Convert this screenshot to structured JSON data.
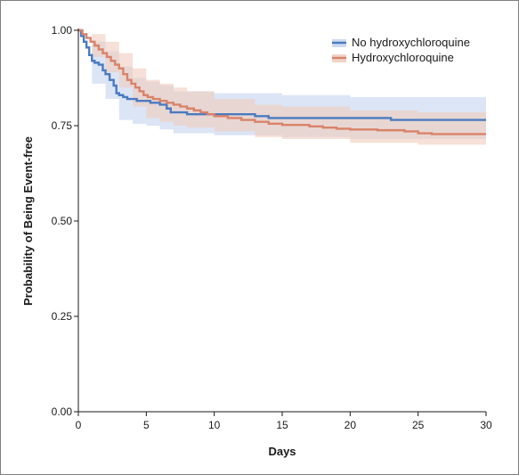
{
  "chart_data": {
    "type": "line",
    "subtype": "kaplan-meier-step",
    "title": "",
    "xlabel": "Days",
    "ylabel": "Probability of Being Event-free",
    "xlim": [
      0,
      30
    ],
    "ylim": [
      0,
      1
    ],
    "x_ticks": [
      "0",
      "5",
      "10",
      "15",
      "20",
      "25",
      "30"
    ],
    "y_ticks": [
      "0.00",
      "0.25",
      "0.50",
      "0.75",
      "1.00"
    ],
    "grid": false,
    "legend_position": "top-right",
    "series": [
      {
        "name": "No hydroxychloroquine",
        "color": "#4a7bc0",
        "band_color": "#c5d3ee",
        "points": [
          [
            0,
            1.0
          ],
          [
            0.2,
            0.985
          ],
          [
            0.4,
            0.97
          ],
          [
            0.6,
            0.955
          ],
          [
            0.8,
            0.935
          ],
          [
            1.0,
            0.92
          ],
          [
            1.2,
            0.915
          ],
          [
            1.5,
            0.91
          ],
          [
            1.8,
            0.895
          ],
          [
            2.0,
            0.885
          ],
          [
            2.3,
            0.87
          ],
          [
            2.6,
            0.855
          ],
          [
            2.8,
            0.835
          ],
          [
            3.0,
            0.83
          ],
          [
            3.3,
            0.825
          ],
          [
            3.6,
            0.82
          ],
          [
            4.0,
            0.82
          ],
          [
            4.3,
            0.815
          ],
          [
            5.0,
            0.815
          ],
          [
            5.3,
            0.81
          ],
          [
            6.0,
            0.805
          ],
          [
            6.5,
            0.795
          ],
          [
            6.8,
            0.785
          ],
          [
            8.0,
            0.78
          ],
          [
            10.0,
            0.78
          ],
          [
            13.0,
            0.775
          ],
          [
            14.0,
            0.77
          ],
          [
            20.0,
            0.77
          ],
          [
            23.0,
            0.765
          ],
          [
            30.0,
            0.765
          ]
        ],
        "ci_upper": [
          [
            0,
            1.0
          ],
          [
            1,
            0.97
          ],
          [
            2,
            0.945
          ],
          [
            3,
            0.905
          ],
          [
            4,
            0.875
          ],
          [
            5,
            0.865
          ],
          [
            6,
            0.855
          ],
          [
            7,
            0.84
          ],
          [
            10,
            0.835
          ],
          [
            15,
            0.83
          ],
          [
            20,
            0.825
          ],
          [
            30,
            0.815
          ]
        ],
        "ci_lower": [
          [
            0,
            1.0
          ],
          [
            1,
            0.86
          ],
          [
            2,
            0.82
          ],
          [
            3,
            0.765
          ],
          [
            4,
            0.755
          ],
          [
            5,
            0.75
          ],
          [
            6,
            0.74
          ],
          [
            7,
            0.73
          ],
          [
            10,
            0.725
          ],
          [
            15,
            0.72
          ],
          [
            20,
            0.715
          ],
          [
            30,
            0.71
          ]
        ]
      },
      {
        "name": "Hydroxychloroquine",
        "color": "#d9836a",
        "band_color": "#f0cbbd",
        "points": [
          [
            0,
            1.0
          ],
          [
            0.3,
            0.99
          ],
          [
            0.6,
            0.98
          ],
          [
            0.9,
            0.97
          ],
          [
            1.2,
            0.96
          ],
          [
            1.5,
            0.95
          ],
          [
            1.8,
            0.94
          ],
          [
            2.1,
            0.93
          ],
          [
            2.4,
            0.92
          ],
          [
            2.7,
            0.91
          ],
          [
            3.0,
            0.9
          ],
          [
            3.3,
            0.885
          ],
          [
            3.6,
            0.87
          ],
          [
            3.9,
            0.86
          ],
          [
            4.2,
            0.85
          ],
          [
            4.5,
            0.84
          ],
          [
            4.8,
            0.83
          ],
          [
            5.1,
            0.825
          ],
          [
            5.5,
            0.82
          ],
          [
            6.0,
            0.815
          ],
          [
            6.5,
            0.81
          ],
          [
            7.0,
            0.805
          ],
          [
            7.5,
            0.8
          ],
          [
            8.0,
            0.795
          ],
          [
            8.5,
            0.79
          ],
          [
            9.0,
            0.785
          ],
          [
            9.5,
            0.78
          ],
          [
            10.0,
            0.775
          ],
          [
            11.0,
            0.77
          ],
          [
            12.0,
            0.765
          ],
          [
            13.0,
            0.76
          ],
          [
            14.0,
            0.755
          ],
          [
            15.0,
            0.752
          ],
          [
            17.0,
            0.748
          ],
          [
            18.0,
            0.745
          ],
          [
            19.0,
            0.742
          ],
          [
            20.0,
            0.74
          ],
          [
            22.0,
            0.738
          ],
          [
            24.0,
            0.735
          ],
          [
            25.0,
            0.73
          ],
          [
            26.0,
            0.728
          ],
          [
            30.0,
            0.728
          ]
        ],
        "ci_upper": [
          [
            0,
            1.0
          ],
          [
            1,
            0.99
          ],
          [
            2,
            0.97
          ],
          [
            3,
            0.94
          ],
          [
            4,
            0.9
          ],
          [
            5,
            0.87
          ],
          [
            6,
            0.86
          ],
          [
            7,
            0.85
          ],
          [
            8,
            0.84
          ],
          [
            10,
            0.82
          ],
          [
            13,
            0.805
          ],
          [
            15,
            0.8
          ],
          [
            20,
            0.79
          ],
          [
            25,
            0.785
          ],
          [
            30,
            0.78
          ]
        ],
        "ci_lower": [
          [
            0,
            1.0
          ],
          [
            1,
            0.93
          ],
          [
            2,
            0.89
          ],
          [
            3,
            0.85
          ],
          [
            4,
            0.8
          ],
          [
            5,
            0.77
          ],
          [
            6,
            0.76
          ],
          [
            7,
            0.75
          ],
          [
            8,
            0.745
          ],
          [
            10,
            0.735
          ],
          [
            13,
            0.72
          ],
          [
            15,
            0.715
          ],
          [
            20,
            0.705
          ],
          [
            25,
            0.7
          ],
          [
            30,
            0.695
          ]
        ]
      }
    ]
  }
}
